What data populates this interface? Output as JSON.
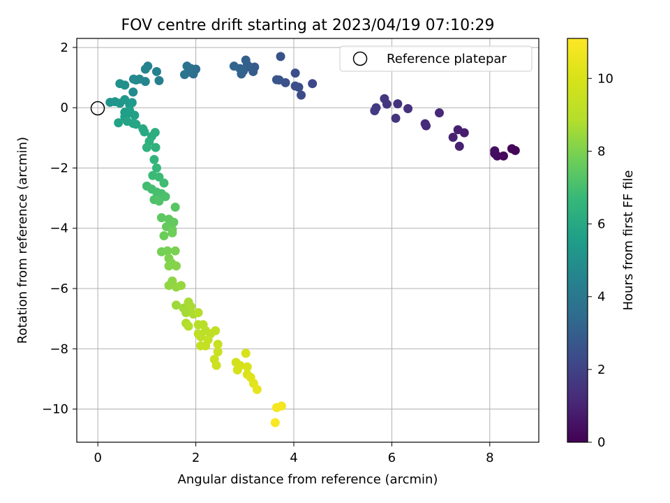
{
  "chart_data": {
    "type": "scatter",
    "title": "FOV centre drift starting at 2023/04/19 07:10:29",
    "xlabel": "Angular distance from reference (arcmin)",
    "ylabel": "Rotation from reference (arcmin)",
    "xlim": [
      -0.43,
      9.0
    ],
    "ylim": [
      -11.1,
      2.3
    ],
    "xticks": [
      0,
      2,
      4,
      6,
      8
    ],
    "yticks": [
      2,
      0,
      -2,
      -4,
      -6,
      -8,
      -10
    ],
    "ytick_labels": [
      "2",
      "0",
      "−2",
      "−4",
      "−6",
      "−8",
      "−10"
    ],
    "grid": true,
    "legend": {
      "position": "top-right",
      "label": "Reference platepar"
    },
    "reference_point": {
      "x": 0,
      "y": 0
    },
    "colorbar": {
      "label": "Hours from first FF file",
      "min": 0,
      "max": 11.1,
      "ticks": [
        0,
        2,
        4,
        6,
        8,
        10
      ],
      "colormap": "viridis"
    },
    "points": [
      {
        "x": 8.52,
        "y": -1.42,
        "h": 0.1
      },
      {
        "x": 8.45,
        "y": -1.36,
        "h": 0.15
      },
      {
        "x": 8.28,
        "y": -1.6,
        "h": 0.2
      },
      {
        "x": 8.15,
        "y": -1.6,
        "h": 0.25
      },
      {
        "x": 8.1,
        "y": -1.52,
        "h": 0.3
      },
      {
        "x": 8.1,
        "y": -1.43,
        "h": 0.35
      },
      {
        "x": 7.48,
        "y": -0.83,
        "h": 0.8
      },
      {
        "x": 7.35,
        "y": -0.73,
        "h": 0.85
      },
      {
        "x": 7.38,
        "y": -1.28,
        "h": 0.9
      },
      {
        "x": 7.25,
        "y": -0.98,
        "h": 0.95
      },
      {
        "x": 6.97,
        "y": -0.17,
        "h": 1.1
      },
      {
        "x": 6.7,
        "y": -0.6,
        "h": 1.2
      },
      {
        "x": 6.68,
        "y": -0.53,
        "h": 1.25
      },
      {
        "x": 6.33,
        "y": -0.03,
        "h": 1.4
      },
      {
        "x": 6.12,
        "y": 0.13,
        "h": 1.45
      },
      {
        "x": 6.08,
        "y": -0.35,
        "h": 1.5
      },
      {
        "x": 5.9,
        "y": 0.12,
        "h": 1.55
      },
      {
        "x": 5.85,
        "y": 0.3,
        "h": 1.6
      },
      {
        "x": 5.68,
        "y": 0.0,
        "h": 1.7
      },
      {
        "x": 5.65,
        "y": -0.1,
        "h": 1.75
      },
      {
        "x": 4.38,
        "y": 0.8,
        "h": 2.2
      },
      {
        "x": 4.15,
        "y": 0.42,
        "h": 2.3
      },
      {
        "x": 4.1,
        "y": 0.68,
        "h": 2.35
      },
      {
        "x": 4.03,
        "y": 1.15,
        "h": 2.4
      },
      {
        "x": 4.03,
        "y": 0.72,
        "h": 2.45
      },
      {
        "x": 3.83,
        "y": 0.83,
        "h": 2.5
      },
      {
        "x": 3.73,
        "y": 1.7,
        "h": 2.55
      },
      {
        "x": 3.7,
        "y": 0.92,
        "h": 2.6
      },
      {
        "x": 3.65,
        "y": 0.93,
        "h": 2.65
      },
      {
        "x": 3.2,
        "y": 1.35,
        "h": 2.85
      },
      {
        "x": 3.17,
        "y": 1.2,
        "h": 2.9
      },
      {
        "x": 3.1,
        "y": 1.35,
        "h": 2.95
      },
      {
        "x": 3.05,
        "y": 1.42,
        "h": 3.0
      },
      {
        "x": 3.02,
        "y": 1.58,
        "h": 3.05
      },
      {
        "x": 2.97,
        "y": 1.22,
        "h": 3.1
      },
      {
        "x": 2.93,
        "y": 1.12,
        "h": 3.15
      },
      {
        "x": 2.9,
        "y": 1.3,
        "h": 3.2
      },
      {
        "x": 2.78,
        "y": 1.38,
        "h": 3.25
      },
      {
        "x": 2.0,
        "y": 1.28,
        "h": 3.6
      },
      {
        "x": 1.95,
        "y": 1.12,
        "h": 3.65
      },
      {
        "x": 1.9,
        "y": 1.3,
        "h": 3.7
      },
      {
        "x": 1.85,
        "y": 1.18,
        "h": 3.75
      },
      {
        "x": 1.82,
        "y": 1.38,
        "h": 3.8
      },
      {
        "x": 1.77,
        "y": 1.1,
        "h": 3.85
      },
      {
        "x": 1.25,
        "y": 0.9,
        "h": 4.3
      },
      {
        "x": 1.2,
        "y": 1.2,
        "h": 4.35
      },
      {
        "x": 1.02,
        "y": 1.38,
        "h": 4.45
      },
      {
        "x": 0.97,
        "y": 1.28,
        "h": 4.5
      },
      {
        "x": 0.97,
        "y": 0.87,
        "h": 4.55
      },
      {
        "x": 0.85,
        "y": 0.95,
        "h": 4.65
      },
      {
        "x": 0.78,
        "y": 0.92,
        "h": 4.7
      },
      {
        "x": 0.73,
        "y": 0.95,
        "h": 4.75
      },
      {
        "x": 0.72,
        "y": 0.52,
        "h": 4.8
      },
      {
        "x": 0.55,
        "y": 0.75,
        "h": 5.0
      },
      {
        "x": 0.45,
        "y": 0.8,
        "h": 5.05
      },
      {
        "x": 0.35,
        "y": 0.2,
        "h": 5.15
      },
      {
        "x": 0.25,
        "y": 0.18,
        "h": 5.2
      },
      {
        "x": 0.45,
        "y": 0.15,
        "h": 5.25
      },
      {
        "x": 0.55,
        "y": 0.27,
        "h": 5.3
      },
      {
        "x": 0.65,
        "y": 0.1,
        "h": 5.35
      },
      {
        "x": 0.7,
        "y": 0.17,
        "h": 5.4
      },
      {
        "x": 0.55,
        "y": -0.15,
        "h": 5.5
      },
      {
        "x": 0.6,
        "y": -0.2,
        "h": 5.55
      },
      {
        "x": 0.55,
        "y": -0.3,
        "h": 5.6
      },
      {
        "x": 0.65,
        "y": -0.1,
        "h": 5.65
      },
      {
        "x": 0.75,
        "y": -0.25,
        "h": 5.7
      },
      {
        "x": 0.42,
        "y": -0.5,
        "h": 5.75
      },
      {
        "x": 0.6,
        "y": -0.45,
        "h": 5.8
      },
      {
        "x": 0.72,
        "y": -0.52,
        "h": 5.85
      },
      {
        "x": 0.78,
        "y": -0.55,
        "h": 5.9
      },
      {
        "x": 0.92,
        "y": -0.7,
        "h": 6.0
      },
      {
        "x": 0.95,
        "y": -0.8,
        "h": 6.05
      },
      {
        "x": 1.1,
        "y": -0.95,
        "h": 6.15
      },
      {
        "x": 1.17,
        "y": -0.82,
        "h": 6.2
      },
      {
        "x": 1.05,
        "y": -1.12,
        "h": 6.3
      },
      {
        "x": 1.18,
        "y": -1.32,
        "h": 6.35
      },
      {
        "x": 1.0,
        "y": -1.32,
        "h": 6.4
      },
      {
        "x": 1.15,
        "y": -1.72,
        "h": 6.5
      },
      {
        "x": 1.2,
        "y": -2.0,
        "h": 6.65
      },
      {
        "x": 1.12,
        "y": -2.25,
        "h": 6.75
      },
      {
        "x": 1.25,
        "y": -2.3,
        "h": 6.8
      },
      {
        "x": 1.35,
        "y": -2.5,
        "h": 6.85
      },
      {
        "x": 1.0,
        "y": -2.6,
        "h": 6.9
      },
      {
        "x": 1.1,
        "y": -2.7,
        "h": 6.95
      },
      {
        "x": 1.2,
        "y": -2.8,
        "h": 7.0
      },
      {
        "x": 1.3,
        "y": -2.85,
        "h": 7.05
      },
      {
        "x": 1.38,
        "y": -2.95,
        "h": 7.1
      },
      {
        "x": 1.15,
        "y": -3.05,
        "h": 7.15
      },
      {
        "x": 1.25,
        "y": -3.1,
        "h": 7.2
      },
      {
        "x": 1.58,
        "y": -3.3,
        "h": 7.35
      },
      {
        "x": 1.3,
        "y": -3.65,
        "h": 7.45
      },
      {
        "x": 1.45,
        "y": -3.7,
        "h": 7.5
      },
      {
        "x": 1.55,
        "y": -3.8,
        "h": 7.55
      },
      {
        "x": 1.4,
        "y": -3.95,
        "h": 7.6
      },
      {
        "x": 1.52,
        "y": -4.05,
        "h": 7.65
      },
      {
        "x": 1.35,
        "y": -4.25,
        "h": 7.7
      },
      {
        "x": 1.52,
        "y": -4.15,
        "h": 7.75
      },
      {
        "x": 1.3,
        "y": -4.78,
        "h": 7.85
      },
      {
        "x": 1.42,
        "y": -4.75,
        "h": 7.9
      },
      {
        "x": 1.58,
        "y": -4.75,
        "h": 7.95
      },
      {
        "x": 1.45,
        "y": -5.0,
        "h": 8.0
      },
      {
        "x": 1.5,
        "y": -5.15,
        "h": 8.05
      },
      {
        "x": 1.45,
        "y": -5.25,
        "h": 8.1
      },
      {
        "x": 1.6,
        "y": -5.25,
        "h": 8.15
      },
      {
        "x": 1.52,
        "y": -5.75,
        "h": 8.25
      },
      {
        "x": 1.45,
        "y": -5.9,
        "h": 8.3
      },
      {
        "x": 1.6,
        "y": -5.95,
        "h": 8.35
      },
      {
        "x": 1.7,
        "y": -5.9,
        "h": 8.4
      },
      {
        "x": 1.6,
        "y": -6.55,
        "h": 8.5
      },
      {
        "x": 1.75,
        "y": -6.65,
        "h": 8.55
      },
      {
        "x": 1.8,
        "y": -6.8,
        "h": 8.6
      },
      {
        "x": 1.85,
        "y": -6.45,
        "h": 8.65
      },
      {
        "x": 1.9,
        "y": -6.6,
        "h": 8.7
      },
      {
        "x": 1.95,
        "y": -6.85,
        "h": 8.75
      },
      {
        "x": 1.8,
        "y": -7.15,
        "h": 8.8
      },
      {
        "x": 1.85,
        "y": -7.25,
        "h": 8.85
      },
      {
        "x": 2.05,
        "y": -6.8,
        "h": 8.9
      },
      {
        "x": 2.05,
        "y": -7.2,
        "h": 8.95
      },
      {
        "x": 2.15,
        "y": -7.2,
        "h": 9.0
      },
      {
        "x": 2.2,
        "y": -7.4,
        "h": 9.05
      },
      {
        "x": 2.05,
        "y": -7.5,
        "h": 9.1
      },
      {
        "x": 2.1,
        "y": -7.6,
        "h": 9.15
      },
      {
        "x": 2.3,
        "y": -7.5,
        "h": 9.2
      },
      {
        "x": 2.4,
        "y": -7.4,
        "h": 9.25
      },
      {
        "x": 2.25,
        "y": -7.7,
        "h": 9.3
      },
      {
        "x": 2.1,
        "y": -7.9,
        "h": 9.35
      },
      {
        "x": 2.2,
        "y": -7.9,
        "h": 9.4
      },
      {
        "x": 2.45,
        "y": -7.85,
        "h": 9.45
      },
      {
        "x": 2.45,
        "y": -8.1,
        "h": 9.5
      },
      {
        "x": 2.38,
        "y": -8.35,
        "h": 9.55
      },
      {
        "x": 2.42,
        "y": -8.55,
        "h": 9.6
      },
      {
        "x": 2.82,
        "y": -8.45,
        "h": 9.8
      },
      {
        "x": 2.9,
        "y": -8.55,
        "h": 9.85
      },
      {
        "x": 2.85,
        "y": -8.7,
        "h": 9.9
      },
      {
        "x": 3.05,
        "y": -8.6,
        "h": 9.95
      },
      {
        "x": 3.02,
        "y": -8.15,
        "h": 10.0
      },
      {
        "x": 3.05,
        "y": -8.85,
        "h": 10.1
      },
      {
        "x": 3.12,
        "y": -8.95,
        "h": 10.2
      },
      {
        "x": 3.18,
        "y": -9.15,
        "h": 10.3
      },
      {
        "x": 3.25,
        "y": -9.35,
        "h": 10.4
      },
      {
        "x": 3.75,
        "y": -9.9,
        "h": 10.8
      },
      {
        "x": 3.65,
        "y": -9.95,
        "h": 10.85
      },
      {
        "x": 3.62,
        "y": -10.45,
        "h": 11.0
      }
    ]
  }
}
